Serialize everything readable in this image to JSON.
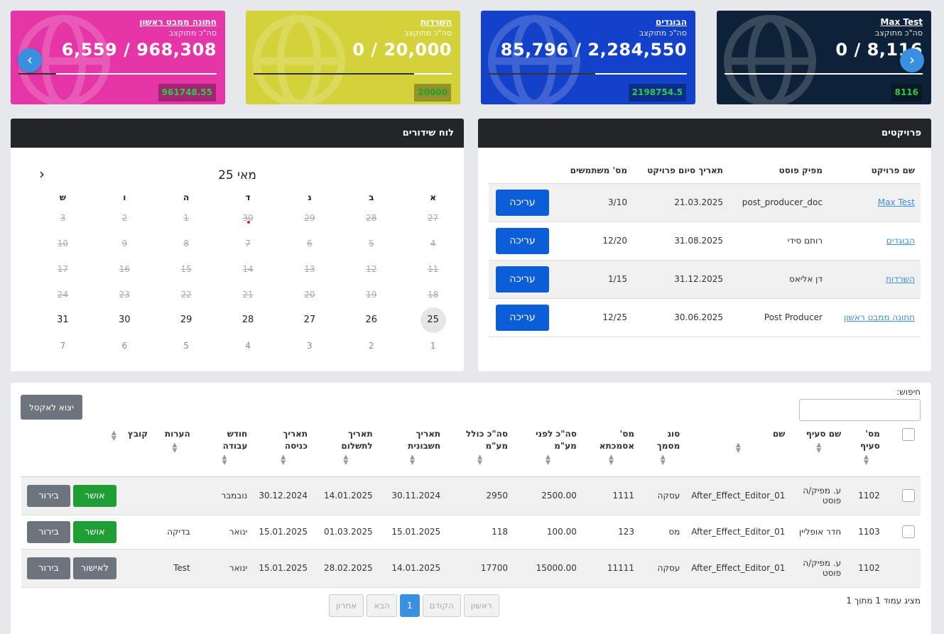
{
  "cards": [
    {
      "title": "Max Test",
      "subtitle": "סה\"כ מתוקצב",
      "value": "0 / 8,116",
      "badge": "8116",
      "color": "#0d2138",
      "progress": 0
    },
    {
      "title": "הבוגדים",
      "subtitle": "סה\"כ מתוקצב",
      "value": "85,796 / 2,284,550",
      "badge": "2198754.5",
      "color": "#1441c9",
      "progress": 0.04
    },
    {
      "title": "השרדות",
      "subtitle": "סה\"כ מתוקצב",
      "value": "0 / 20,000",
      "badge": "20000",
      "color": "#d4d23a",
      "progress": 0
    },
    {
      "title": "חתונה ממבט ראשון",
      "subtitle": "סה\"כ מתוקצב",
      "value": "6,559 / 968,308",
      "badge": "961748.55",
      "color": "#e535a6",
      "progress": 0.01
    }
  ],
  "projects": {
    "title": "פרויקטים",
    "headers": [
      "שם פרויקט",
      "מפיק פוסט",
      "תאריך סיום פרויקט",
      "מס' משתמשים"
    ],
    "edit_label": "עריכה",
    "rows": [
      {
        "name": "Max Test",
        "producer": "post_producer_doc",
        "end": "21.03.2025",
        "users": "3/10"
      },
      {
        "name": "הבוגדים",
        "producer": "רותם סידי",
        "end": "31.08.2025",
        "users": "12/20"
      },
      {
        "name": "השרדות",
        "producer": "דן אליאס",
        "end": "31.12.2025",
        "users": "1/15"
      },
      {
        "name": "חתונה ממבט ראשון",
        "producer": "Post Producer",
        "end": "30.06.2025",
        "users": "12/25"
      }
    ]
  },
  "calendar": {
    "title": "לוח שידורים",
    "month": "מאי 25",
    "days": [
      "א",
      "ב",
      "ג",
      "ד",
      "ה",
      "ו",
      "ש"
    ],
    "weeks": [
      [
        "27",
        "28",
        "29",
        "30",
        "1",
        "2",
        "3"
      ],
      [
        "4",
        "5",
        "6",
        "7",
        "8",
        "9",
        "10"
      ],
      [
        "11",
        "12",
        "13",
        "14",
        "15",
        "16",
        "17"
      ],
      [
        "18",
        "19",
        "20",
        "21",
        "22",
        "23",
        "24"
      ],
      [
        "25",
        "26",
        "27",
        "28",
        "29",
        "30",
        "31"
      ],
      [
        "1",
        "2",
        "3",
        "4",
        "5",
        "6",
        "7"
      ]
    ]
  },
  "table": {
    "search_label": "חיפוש:",
    "excel_label": "יצוא לאקסל",
    "headers": [
      "מס' סעיף",
      "שם סעיף",
      "שם",
      "סוג מסמך",
      "מס' אסמכתא",
      "סה\"כ לפני מע\"מ",
      "סה\"כ כולל מע\"מ",
      "תאריך חשבונית",
      "תאריך לתשלום",
      "תאריך כניסה",
      "חודש עבודה",
      "הערות",
      "קובץ"
    ],
    "rows": [
      {
        "num": "1102",
        "section": "ע. מפיק/ה פוסט",
        "name": "After_Effect_Editor_01",
        "type": "עסקה",
        "ref": "1111",
        "pre": "2500.00",
        "total": "2950",
        "inv": "30.11.2024",
        "pay": "14.01.2025",
        "entry": "30.12.2024",
        "month": "נובמבר",
        "notes": "",
        "status": "אושר",
        "clarify": "בירור"
      },
      {
        "num": "1103",
        "section": "חדר אופליין",
        "name": "After_Effect_Editor_01",
        "type": "מס",
        "ref": "123",
        "pre": "100.00",
        "total": "118",
        "inv": "15.01.2025",
        "pay": "01.03.2025",
        "entry": "15.01.2025",
        "month": "ינואר",
        "notes": "בדיקה",
        "status": "אושר",
        "clarify": "בירור"
      },
      {
        "num": "1102",
        "section": "ע. מפיק/ה פוסט",
        "name": "After_Effect_Editor_01",
        "type": "עסקה",
        "ref": "11111",
        "pre": "15000.00",
        "total": "17700",
        "inv": "14.01.2025",
        "pay": "28.02.2025",
        "entry": "15.01.2025",
        "month": "ינואר",
        "notes": "Test",
        "status": "לאישור",
        "clarify": "בירור"
      }
    ],
    "info": "מציג עמוד 1 מתוך 1",
    "pager": {
      "first": "ראשון",
      "prev": "הקודם",
      "page": "1",
      "next": "הבא",
      "last": "אחרון"
    }
  }
}
